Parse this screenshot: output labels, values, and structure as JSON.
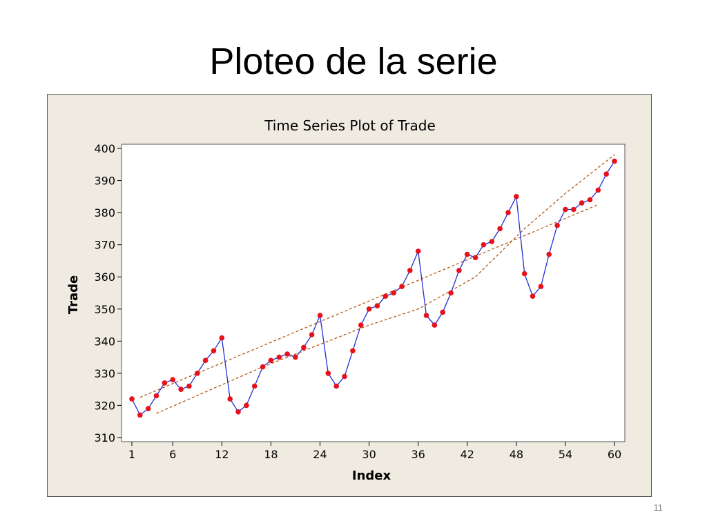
{
  "slide": {
    "title": "Ploteo de la serie",
    "page_number": "11"
  },
  "colors": {
    "frame_bg": "#efebe1",
    "plot_bg": "#ffffff",
    "line": "#1f2fd6",
    "marker": "#e8101a",
    "trend": "#b35a1a"
  },
  "chart_data": {
    "type": "line",
    "title": "Time Series Plot of Trade",
    "xlabel": "Index",
    "ylabel": "Trade",
    "xlim": [
      1,
      60
    ],
    "ylim": [
      310,
      400
    ],
    "x_ticks": [
      1,
      6,
      12,
      18,
      24,
      30,
      36,
      42,
      48,
      54,
      60
    ],
    "y_ticks": [
      310,
      320,
      330,
      340,
      350,
      360,
      370,
      380,
      390,
      400
    ],
    "grid": false,
    "series": [
      {
        "x": [
          1,
          2,
          3,
          4,
          5,
          6,
          7,
          8,
          9,
          10,
          11,
          12,
          13,
          14,
          15,
          16,
          17,
          18,
          19,
          20,
          21,
          22,
          23,
          24,
          25,
          26,
          27,
          28,
          29,
          30,
          31,
          32,
          33,
          34,
          35,
          36,
          37,
          38,
          39,
          40,
          41,
          42,
          43,
          44,
          45,
          46,
          47,
          48,
          49,
          50,
          51,
          52,
          53,
          54,
          55,
          56,
          57,
          58,
          59,
          60
        ],
        "values": [
          322,
          317,
          319,
          323,
          327,
          328,
          325,
          326,
          330,
          334,
          337,
          341,
          322,
          318,
          320,
          326,
          332,
          334,
          335,
          336,
          335,
          338,
          342,
          348,
          330,
          326,
          329,
          337,
          345,
          350,
          351,
          354,
          355,
          357,
          362,
          368,
          348,
          345,
          349,
          355,
          362,
          367,
          366,
          370,
          371,
          375,
          380,
          385,
          361,
          354,
          357,
          367,
          376,
          381,
          381,
          383,
          384,
          387,
          392,
          396
        ]
      }
    ],
    "trend_lines": [
      {
        "style": "dashed",
        "x": [
          2,
          58
        ],
        "values": [
          322.5,
          382.5
        ]
      },
      {
        "style": "dashed",
        "x": [
          4,
          17,
          30,
          36,
          43,
          49,
          54,
          60
        ],
        "values": [
          317.5,
          332,
          345,
          350,
          360,
          375,
          386,
          398
        ]
      }
    ]
  }
}
